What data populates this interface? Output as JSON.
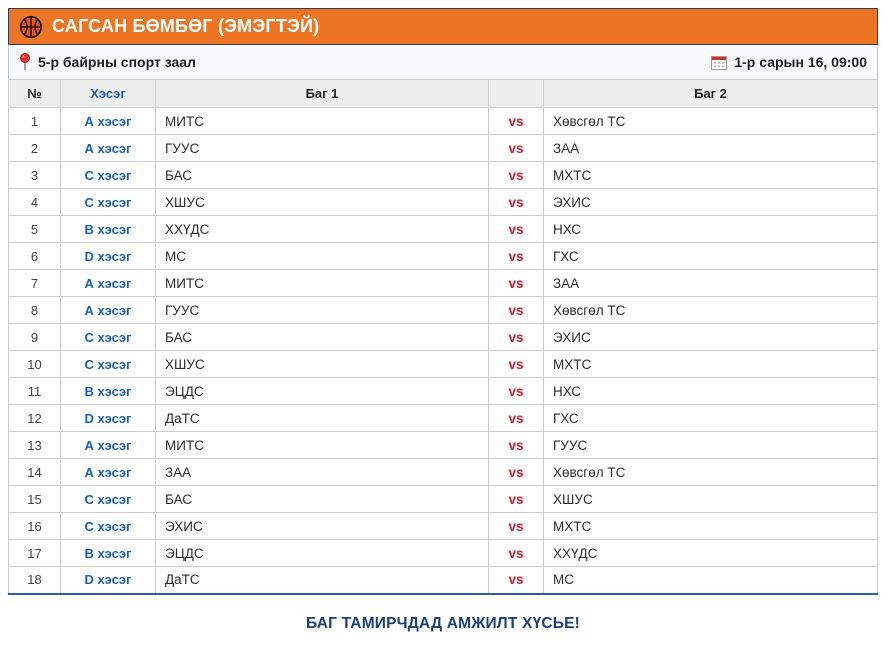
{
  "header": {
    "title": "САГСАН БӨМБӨГ (ЭМЭГТЭЙ)",
    "icon": "basketball-icon"
  },
  "info": {
    "venue": "5-р байрны спорт заал",
    "datetime": "1-р сарын 16, 09:00"
  },
  "table": {
    "columns": {
      "no": "№",
      "group": "Хэсэг",
      "team1": "Баг 1",
      "vs": "",
      "team2": "Баг 2"
    },
    "vs_label": "vs",
    "rows": [
      {
        "no": "1",
        "group": "А хэсэг",
        "team1": "МИТС",
        "team2": "Хөвсгөл ТС"
      },
      {
        "no": "2",
        "group": "А хэсэг",
        "team1": "ГУУС",
        "team2": "ЗАА"
      },
      {
        "no": "3",
        "group": "С хэсэг",
        "team1": "БАС",
        "team2": "МХТС"
      },
      {
        "no": "4",
        "group": "С хэсэг",
        "team1": "ХШУС",
        "team2": "ЭХИС"
      },
      {
        "no": "5",
        "group": "В хэсэг",
        "team1": "ХХҮДС",
        "team2": "НХС"
      },
      {
        "no": "6",
        "group": "D хэсэг",
        "team1": "МС",
        "team2": "ГХС"
      },
      {
        "no": "7",
        "group": "А хэсэг",
        "team1": "МИТС",
        "team2": "ЗАА"
      },
      {
        "no": "8",
        "group": "А хэсэг",
        "team1": "ГУУС",
        "team2": "Хөвсгөл ТС"
      },
      {
        "no": "9",
        "group": "С хэсэг",
        "team1": "БАС",
        "team2": "ЭХИС"
      },
      {
        "no": "10",
        "group": "С хэсэг",
        "team1": "ХШУС",
        "team2": "МХТС"
      },
      {
        "no": "11",
        "group": "В хэсэг",
        "team1": "ЭЦДС",
        "team2": "НХС"
      },
      {
        "no": "12",
        "group": "D хэсэг",
        "team1": "ДаТС",
        "team2": "ГХС"
      },
      {
        "no": "13",
        "group": "А хэсэг",
        "team1": "МИТС",
        "team2": "ГУУС"
      },
      {
        "no": "14",
        "group": "А хэсэг",
        "team1": "ЗАА",
        "team2": "Хөвсгөл ТС"
      },
      {
        "no": "15",
        "group": "С хэсэг",
        "team1": "БАС",
        "team2": "ХШУС"
      },
      {
        "no": "16",
        "group": "С хэсэг",
        "team1": "ЭХИС",
        "team2": "МХТС"
      },
      {
        "no": "17",
        "group": "В хэсэг",
        "team1": "ЭЦДС",
        "team2": "ХХҮДС"
      },
      {
        "no": "18",
        "group": "D хэсэг",
        "team1": "ДаТС",
        "team2": "МС"
      }
    ]
  },
  "footer": {
    "message": "БАГ ТАМИРЧДАД АМЖИЛТ ХҮСЬЕ!"
  },
  "colors": {
    "accent_orange": "#EC7423",
    "group_blue": "#1A5FAE",
    "vs_red": "#C8202F",
    "footer_navy": "#1A3E7D",
    "table_bottom_border": "#2B5CA8",
    "header_bg": "#EEEEEE",
    "info_bg": "#F8FAFB"
  }
}
